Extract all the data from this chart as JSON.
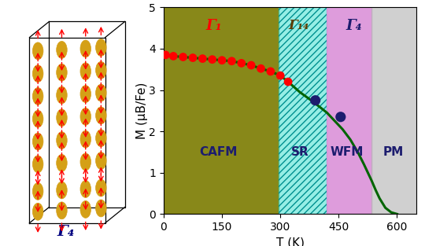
{
  "red_dots_T": [
    5,
    25,
    50,
    75,
    100,
    125,
    150,
    175,
    200,
    225,
    250,
    275,
    300,
    320
  ],
  "red_dots_M": [
    3.85,
    3.82,
    3.8,
    3.78,
    3.76,
    3.74,
    3.72,
    3.7,
    3.65,
    3.6,
    3.52,
    3.45,
    3.35,
    3.2
  ],
  "blue_dots_T": [
    390,
    455
  ],
  "blue_dots_M": [
    2.75,
    2.35
  ],
  "curve_T": [
    5,
    25,
    50,
    75,
    100,
    125,
    150,
    175,
    200,
    225,
    250,
    275,
    300,
    320,
    350,
    375,
    400,
    420,
    440,
    460,
    480,
    500,
    515,
    525,
    535,
    545,
    555,
    570,
    585,
    600
  ],
  "curve_M": [
    3.85,
    3.82,
    3.8,
    3.78,
    3.76,
    3.74,
    3.72,
    3.7,
    3.65,
    3.6,
    3.52,
    3.45,
    3.35,
    3.2,
    2.95,
    2.78,
    2.6,
    2.45,
    2.25,
    2.05,
    1.8,
    1.48,
    1.2,
    1.0,
    0.8,
    0.58,
    0.38,
    0.15,
    0.04,
    0.0
  ],
  "region_CAFM_xmin": 0,
  "region_CAFM_xmax": 295,
  "region_CAFM_color": "#7B7B00",
  "region_SR_xmin": 295,
  "region_SR_xmax": 418,
  "region_SR_color": "#40E0D0",
  "region_WFM_xmin": 418,
  "region_WFM_xmax": 535,
  "region_WFM_color": "#DA8FD8",
  "region_PM_xmin": 535,
  "region_PM_xmax": 650,
  "region_PM_color": "#B8B8B8",
  "xlim": [
    0,
    650
  ],
  "ylim": [
    0,
    5
  ],
  "xticks": [
    0,
    150,
    300,
    450,
    600
  ],
  "yticks": [
    0,
    1,
    2,
    3,
    4,
    5
  ],
  "xlabel": "T (K)",
  "ylabel": "M (μB/Fe)",
  "gamma1_label": "Γ₁",
  "gamma14_label": "Γ₁₄",
  "gamma4_label": "Γ₄",
  "gamma4_bottom": "Γ₄",
  "curve_color": "#006400",
  "red_dot_color": "#FF0000",
  "blue_dot_color": "#1C1C6E",
  "label_color": "#1C1C6E",
  "gamma1_color": "#FF0000",
  "gamma14_color": "#5C3D00",
  "gamma4_color": "#1C1C6E"
}
